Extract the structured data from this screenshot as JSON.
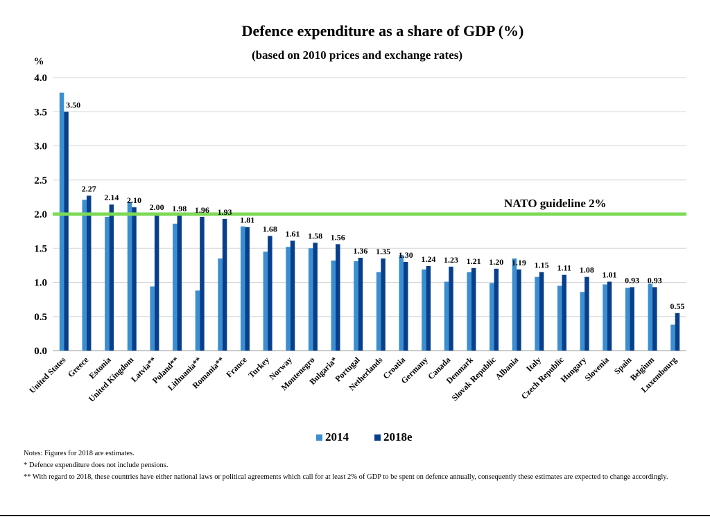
{
  "chart_data": {
    "type": "bar",
    "title": "Defence expenditure as a share of GDP (%)",
    "subtitle": "(based on 2010 prices and exchange rates)",
    "ylabel": "%",
    "ylim": [
      0,
      4.0
    ],
    "yticks": [
      "0.0",
      "0.5",
      "1.0",
      "1.5",
      "2.0",
      "2.5",
      "3.0",
      "3.5",
      "4.0"
    ],
    "grid": true,
    "legend_position": "bottom",
    "categories": [
      "United States",
      "Greece",
      "Estonia",
      "United Kingdom",
      "Latvia**",
      "Poland**",
      "Lithuania**",
      "Romania**",
      "France",
      "Turkey",
      "Norway",
      "Montenegro",
      "Bulgaria*",
      "Portugal",
      "Netherlands",
      "Croatia",
      "Germany",
      "Canada",
      "Denmark",
      "Slovak Republic",
      "Albania",
      "Italy",
      "Czech Republic",
      "Hungary",
      "Slovenia",
      "Spain",
      "Belgium",
      "Luxembourg"
    ],
    "series": [
      {
        "name": "2014",
        "color": "#3b8fd0",
        "values": [
          3.78,
          2.21,
          1.96,
          2.18,
          0.94,
          1.86,
          0.88,
          1.35,
          1.82,
          1.45,
          1.52,
          1.5,
          1.32,
          1.31,
          1.15,
          1.4,
          1.19,
          1.01,
          1.15,
          0.99,
          1.35,
          1.08,
          0.95,
          0.86,
          0.97,
          0.92,
          0.98,
          0.38
        ]
      },
      {
        "name": "2018e",
        "color": "#083f8c",
        "values": [
          3.5,
          2.27,
          2.14,
          2.1,
          2.0,
          1.98,
          1.96,
          1.93,
          1.81,
          1.68,
          1.61,
          1.58,
          1.56,
          1.36,
          1.35,
          1.3,
          1.24,
          1.23,
          1.21,
          1.2,
          1.19,
          1.15,
          1.11,
          1.08,
          1.01,
          0.93,
          0.93,
          0.55
        ],
        "labels": [
          "3.50",
          "2.27",
          "2.14",
          "2.10",
          "2.00",
          "1.98",
          "1.96",
          "1.93",
          "1.81",
          "1.68",
          "1.61",
          "1.58",
          "1.56",
          "1.36",
          "1.35",
          "1.30",
          "1.24",
          "1.23",
          "1.21",
          "1.20",
          "1.19",
          "1.15",
          "1.11",
          "1.08",
          "1.01",
          "0.93",
          "0.93",
          "0.55"
        ]
      }
    ],
    "reference_line": {
      "value": 2.0,
      "label": "NATO guideline 2%",
      "color": "#7ed957"
    }
  },
  "notes": [
    "Notes: Figures for 2018 are estimates.",
    "*   Defence expenditure does not include pensions.",
    "**  With regard to 2018, these countries have either national laws or political agreements which call for at least 2% of GDP to be spent on defence annually, consequently these estimates are expected to change accordingly."
  ]
}
